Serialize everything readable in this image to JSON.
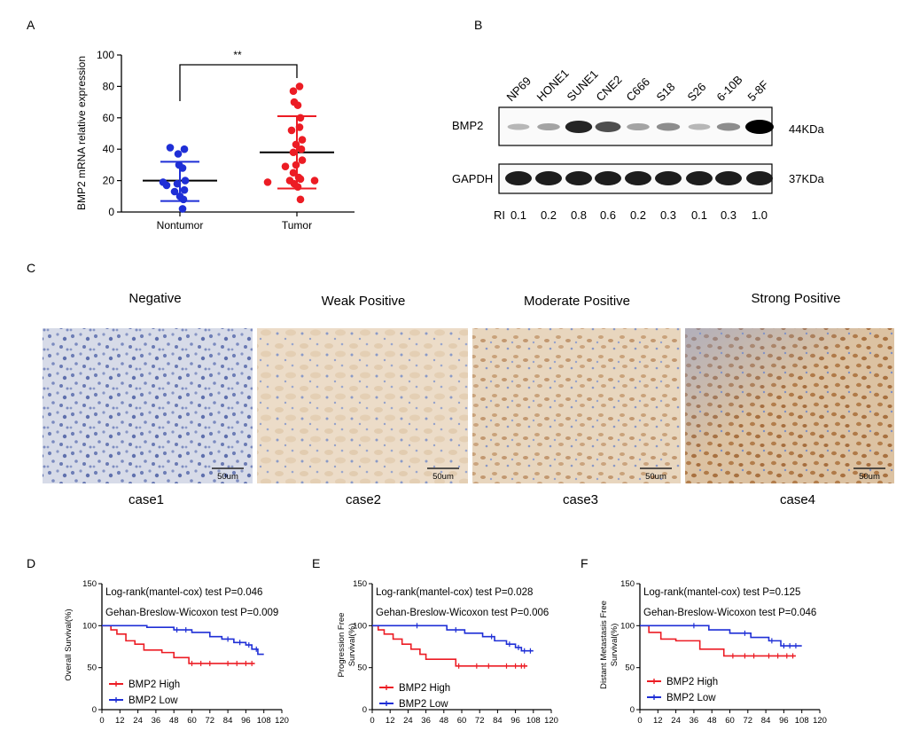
{
  "panel_labels": {
    "A": "A",
    "B": "B",
    "C": "C",
    "D": "D",
    "E": "E",
    "F": "F"
  },
  "colors": {
    "blue": "#1f2fd6",
    "red": "#ec1c24",
    "axis": "#000000",
    "ihc_negative": "#d6dbe8",
    "ihc_weak": "#ead9c3",
    "ihc_moderate": "#e6d2b8",
    "ihc_strong": "#dcc09e"
  },
  "chart_data": [
    {
      "id": "A",
      "type": "scatter",
      "title": "",
      "ylabel": "BMP2 mRNA relative expression",
      "xlabel": "",
      "categories": [
        "Nontumor",
        "Tumor"
      ],
      "ylim": [
        0,
        100
      ],
      "yticks": [
        0,
        20,
        40,
        60,
        80,
        100
      ],
      "significance": "**",
      "series": [
        {
          "name": "Nontumor",
          "color": "#1f2fd6",
          "mean": 20,
          "sd_low": 7,
          "sd_high": 32,
          "values": [
            40,
            41,
            37,
            30,
            28,
            20,
            19,
            18,
            17,
            14,
            13,
            10,
            8,
            2
          ]
        },
        {
          "name": "Tumor",
          "color": "#ec1c24",
          "mean": 38,
          "sd_low": 15,
          "sd_high": 61,
          "values": [
            80,
            77,
            70,
            68,
            60,
            54,
            52,
            46,
            43,
            40,
            38,
            33,
            30,
            29,
            25,
            22,
            21,
            20,
            20,
            19,
            18,
            16,
            8
          ]
        }
      ]
    },
    {
      "id": "D",
      "type": "line",
      "ylabel": "Overall Survival(%)",
      "xlim": [
        0,
        120
      ],
      "xticks": [
        0,
        12,
        24,
        36,
        48,
        60,
        72,
        84,
        96,
        108,
        120
      ],
      "ylim": [
        0,
        150
      ],
      "yticks": [
        0,
        50,
        100,
        150
      ],
      "annotations": [
        "Log-rank(mantel-cox) test P=0.046",
        "Gehan-Breslow-Wicoxon test P=0.009"
      ],
      "series": [
        {
          "name": "BMP2 High",
          "color": "#ec1c24",
          "x": [
            0,
            6,
            10,
            16,
            22,
            28,
            40,
            48,
            58,
            102
          ],
          "y": [
            100,
            95,
            90,
            82,
            78,
            71,
            68,
            62,
            55,
            55
          ],
          "censors": [
            60,
            66,
            72,
            84,
            90,
            96,
            100
          ]
        },
        {
          "name": "BMP2 Low",
          "color": "#1f2fd6",
          "x": [
            0,
            30,
            48,
            60,
            72,
            80,
            88,
            96,
            100,
            104,
            108
          ],
          "y": [
            100,
            98,
            95,
            92,
            87,
            84,
            80,
            77,
            72,
            66,
            66
          ],
          "censors": [
            50,
            56,
            84,
            92,
            98,
            103
          ]
        }
      ]
    },
    {
      "id": "E",
      "type": "line",
      "ylabel": "Progression Free Survival(%)",
      "xlim": [
        0,
        120
      ],
      "xticks": [
        0,
        12,
        24,
        36,
        48,
        60,
        72,
        84,
        96,
        108,
        120
      ],
      "ylim": [
        0,
        150
      ],
      "yticks": [
        0,
        50,
        100,
        150
      ],
      "annotations": [
        "Log-rank(mantel-cox) test P=0.028",
        "Gehan-Breslow-Wicoxon test P=0.006"
      ],
      "series": [
        {
          "name": "BMP2 High",
          "color": "#ec1c24",
          "x": [
            0,
            4,
            8,
            14,
            20,
            26,
            32,
            36,
            56,
            104
          ],
          "y": [
            100,
            95,
            90,
            84,
            78,
            72,
            66,
            60,
            52,
            52
          ],
          "censors": [
            58,
            70,
            78,
            90,
            96,
            100,
            102
          ]
        },
        {
          "name": "BMP2 Low",
          "color": "#1f2fd6",
          "x": [
            0,
            50,
            62,
            74,
            82,
            90,
            96,
            100,
            108
          ],
          "y": [
            100,
            95,
            91,
            87,
            82,
            78,
            74,
            70,
            70
          ],
          "censors": [
            30,
            56,
            80,
            92,
            98,
            102,
            106
          ]
        }
      ]
    },
    {
      "id": "F",
      "type": "line",
      "ylabel": "Distant Metastasis Free Survival(%)",
      "xlim": [
        0,
        120
      ],
      "xticks": [
        0,
        12,
        24,
        36,
        48,
        60,
        72,
        84,
        96,
        108,
        120
      ],
      "ylim": [
        0,
        150
      ],
      "yticks": [
        0,
        50,
        100,
        150
      ],
      "annotations": [
        "Log-rank(mantel-cox) test P=0.125",
        "Gehan-Breslow-Wicoxon test P=0.046"
      ],
      "series": [
        {
          "name": "BMP2 High",
          "color": "#ec1c24",
          "x": [
            0,
            6,
            14,
            24,
            40,
            56,
            104
          ],
          "y": [
            100,
            92,
            84,
            82,
            72,
            64,
            64
          ],
          "censors": [
            62,
            70,
            76,
            86,
            92,
            98,
            102
          ]
        },
        {
          "name": "BMP2 Low",
          "color": "#1f2fd6",
          "x": [
            0,
            46,
            60,
            74,
            86,
            94,
            108
          ],
          "y": [
            100,
            95,
            91,
            86,
            82,
            76,
            76
          ],
          "censors": [
            36,
            70,
            88,
            96,
            100,
            104
          ]
        }
      ]
    }
  ],
  "western_blot": {
    "cell_lines": [
      "NP69",
      "HONE1",
      "SUNE1",
      "CNE2",
      "C666",
      "S18",
      "S26",
      "6-10B",
      "5-8F"
    ],
    "bmp2_label": "BMP2",
    "bmp2_size": "44KDa",
    "gapdh_label": "GAPDH",
    "gapdh_size": "37KDa",
    "ri_label": "RI",
    "ri_values": [
      "0.1",
      "0.2",
      "0.8",
      "0.6",
      "0.2",
      "0.3",
      "0.1",
      "0.3",
      "1.0"
    ]
  },
  "ihc": [
    {
      "title": "Negative",
      "case": "case1",
      "scale": "50um"
    },
    {
      "title": "Weak Positive",
      "case": "case2",
      "scale": "50um"
    },
    {
      "title": "Moderate Positive",
      "case": "case3",
      "scale": "50um"
    },
    {
      "title": "Strong Positive",
      "case": "case4",
      "scale": "50um"
    }
  ]
}
